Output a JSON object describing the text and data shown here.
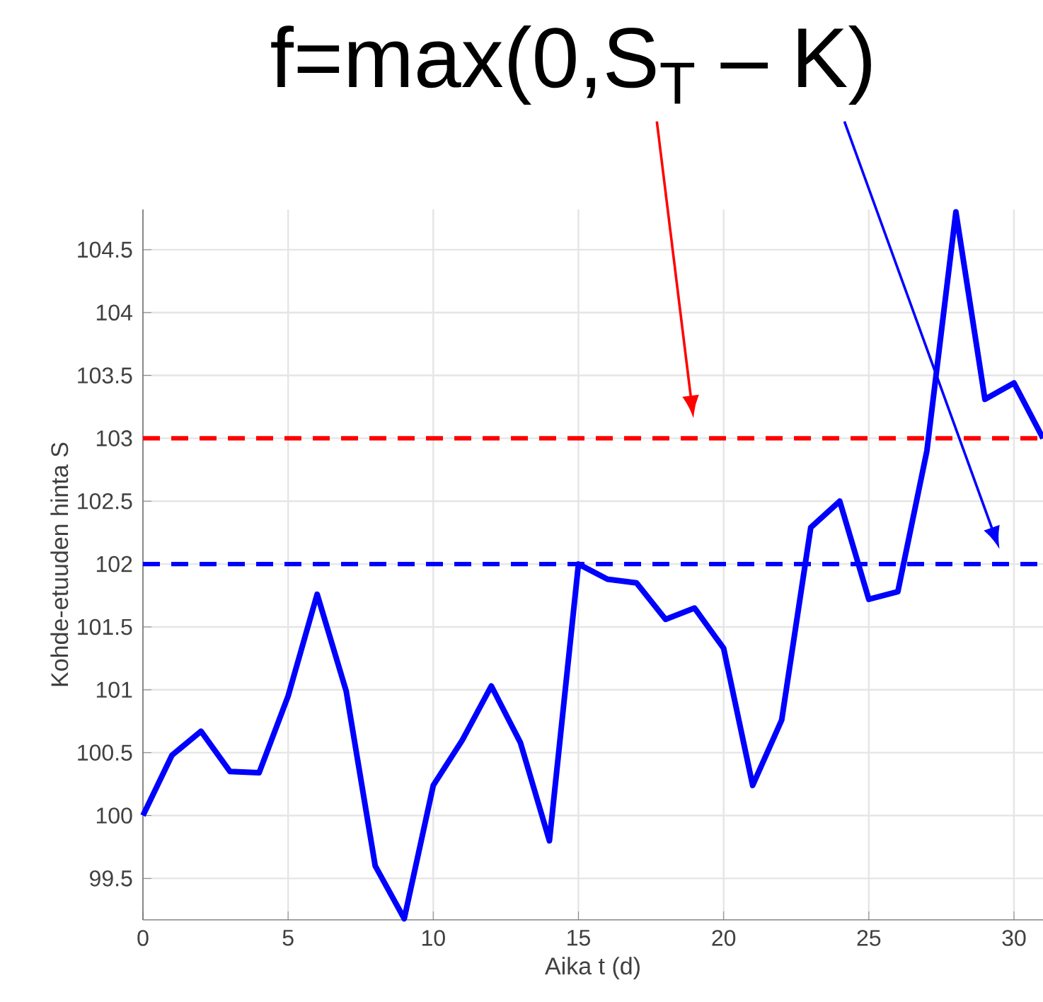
{
  "chart_data": {
    "type": "line",
    "title": "f=max(0,S$_{T}$ – K)",
    "xlabel": "Aika t (d)",
    "ylabel": "Kohde-etuuden hinta S",
    "x": [
      0,
      1,
      2,
      3,
      4,
      5,
      6,
      7,
      8,
      9,
      10,
      11,
      12,
      13,
      14,
      15,
      16,
      17,
      18,
      19,
      20,
      21,
      22,
      23,
      24,
      25,
      26,
      27,
      28,
      29,
      30,
      31
    ],
    "series": [
      {
        "color": "#0000ff",
        "values": [
          100,
          100.48,
          100.67,
          100.35,
          100.34,
          100.95,
          101.76,
          100.99,
          99.6,
          99.18,
          100.24,
          100.6,
          101.03,
          100.58,
          99.8,
          102.0,
          101.88,
          101.85,
          101.56,
          101.65,
          101.33,
          100.24,
          100.76,
          102.29,
          102.5,
          101.72,
          101.78,
          102.9,
          104.8,
          103.31,
          103.44,
          103.0
        ]
      }
    ],
    "xlim": [
      0,
      31
    ],
    "ylim": [
      99.17,
      104.82
    ],
    "xticks": [
      0,
      5,
      10,
      15,
      20,
      25,
      30
    ],
    "yticks": [
      99.5,
      100,
      100.5,
      101,
      101.5,
      102,
      102.5,
      103,
      103.5,
      104,
      104.5
    ],
    "grid": true,
    "line_style": "solid",
    "marker": "none",
    "ref_lines": [
      {
        "axis": "y",
        "value": 103,
        "color": "#ff0000",
        "line_style": "dashed"
      },
      {
        "axis": "y",
        "value": 102,
        "color": "#0000ff",
        "line_style": "dashed"
      }
    ]
  }
}
